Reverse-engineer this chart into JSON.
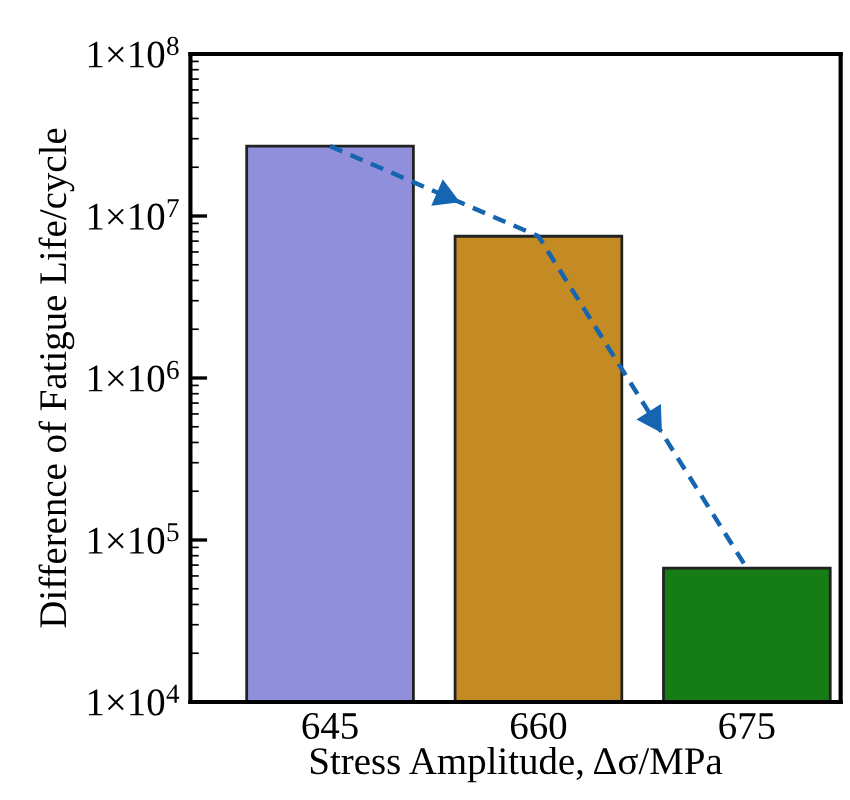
{
  "chart_data": {
    "type": "bar",
    "xlabel": "Stress Amplitude, Δσ/MPa",
    "ylabel": "Difference of Fatigue Life/cycle",
    "categories": [
      "645",
      "660",
      "675"
    ],
    "series": [
      {
        "values": [
          27000000,
          7500000,
          67000
        ],
        "colors": [
          "#8f8fdc",
          "#c48a24",
          "#167d16"
        ]
      },
      {
        "type": "line",
        "x": [
          "645",
          "660",
          "675"
        ],
        "values": [
          27000000,
          7500000,
          67000
        ],
        "color": "#1565b0"
      }
    ],
    "log": true,
    "ylim": [
      10000,
      100000000
    ],
    "yticks": [
      {
        "value": 10000,
        "label": "1×10$^{4}$"
      },
      {
        "value": 100000,
        "label": "1×10$^{5}$"
      },
      {
        "value": 1000000,
        "label": "1×10$^{6}$"
      },
      {
        "value": 10000000,
        "label": "1×10$^{7}$"
      },
      {
        "value": 100000000,
        "label": "1×10$^{8}$"
      }
    ],
    "grid": false,
    "legend": false,
    "line_style": "dashed",
    "marker": "none"
  }
}
